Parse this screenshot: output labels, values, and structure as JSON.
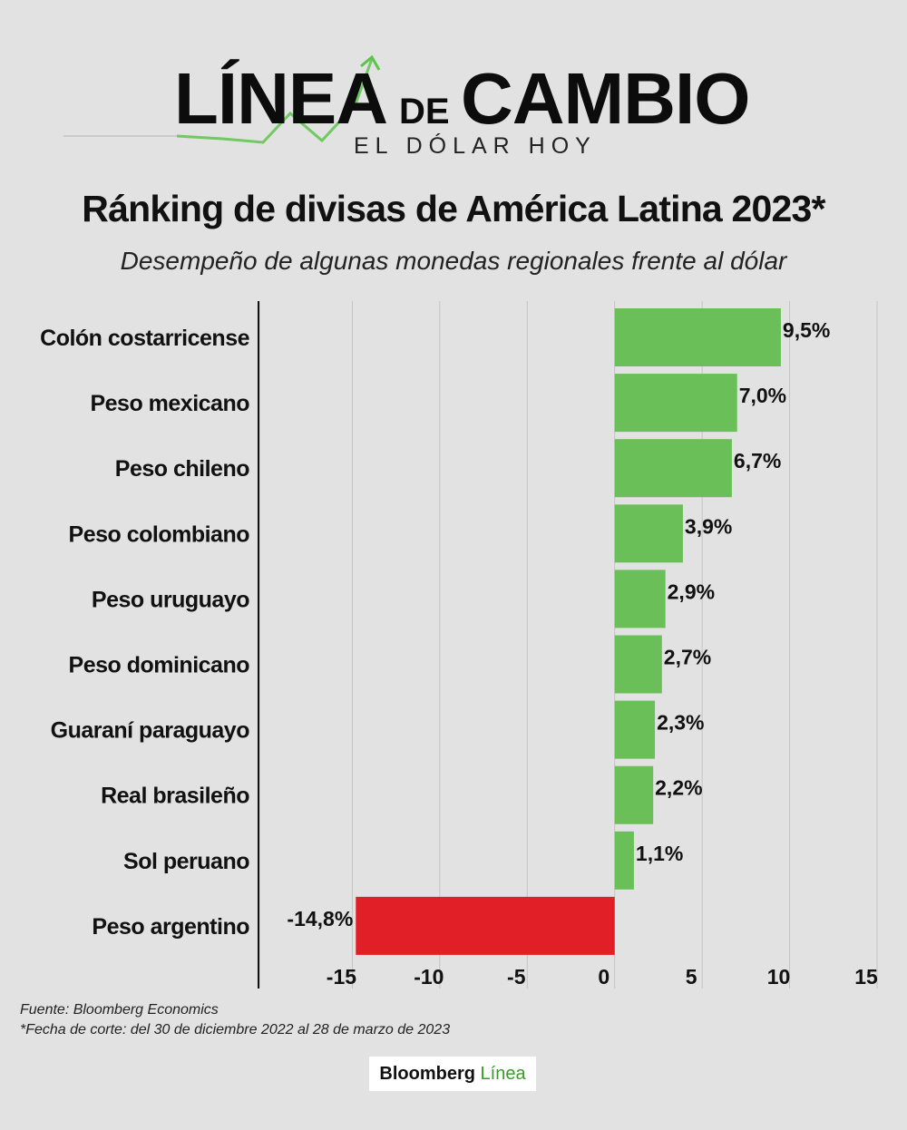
{
  "header": {
    "logo_part1": "LÍNEA",
    "logo_part2": "DE",
    "logo_part3": "CAMBIO",
    "logo_tagline": "EL DÓLAR HOY",
    "title": "Ránking de divisas de América Latina 2023*",
    "subtitle": "Desempeño de algunas monedas regionales frente al dólar"
  },
  "colors": {
    "positive": "#6abf58",
    "negative": "#e01f26",
    "grid": "#c4c4c4",
    "background": "#e2e2e2",
    "logo_arrow": "#5cc44a"
  },
  "chart_data": {
    "type": "bar",
    "orientation": "horizontal",
    "categories": [
      "Colón costarricense",
      "Peso mexicano",
      "Peso chileno",
      "Peso colombiano",
      "Peso uruguayo",
      "Peso dominicano",
      "Guaraní paraguayo",
      "Real brasileño",
      "Sol peruano",
      "Peso argentino"
    ],
    "values": [
      9.5,
      7.0,
      6.7,
      3.9,
      2.9,
      2.7,
      2.3,
      2.2,
      1.1,
      -14.8
    ],
    "value_labels": [
      "9,5%",
      "7,0%",
      "6,7%",
      "3,9%",
      "2,9%",
      "2,7%",
      "2,3%",
      "2,2%",
      "1,1%",
      "-14,8%"
    ],
    "xlim": [
      -20,
      15
    ],
    "ticks": [
      -15,
      -10,
      -5,
      0,
      5,
      10,
      15
    ],
    "tick_labels": [
      "-15",
      "-10",
      "-5",
      "0",
      "5",
      "10",
      "15"
    ],
    "grid": true,
    "unit": "%"
  },
  "footer": {
    "source": "Fuente: Bloomberg Economics",
    "note": "*Fecha de corte: del 30 de diciembre 2022 al 28 de marzo de 2023"
  },
  "brand": {
    "part1": "Bloomberg",
    "part2": "Línea"
  }
}
